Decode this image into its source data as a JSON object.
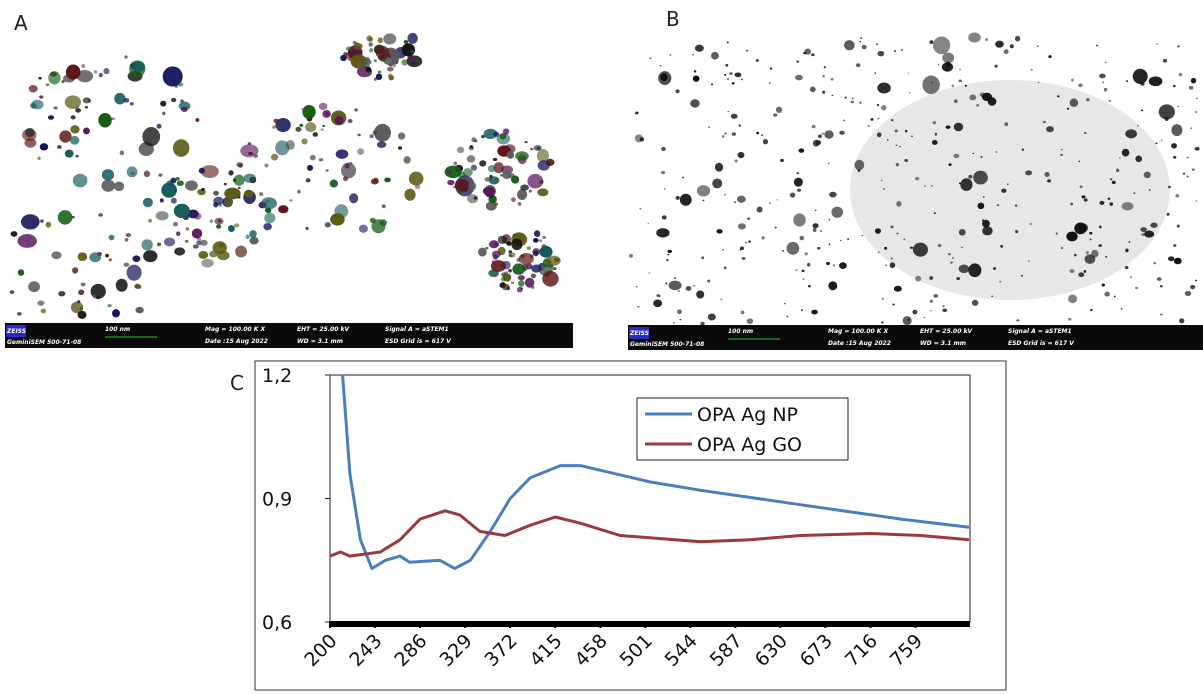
{
  "panel_labels": [
    "A",
    "B",
    "C"
  ],
  "sem_bar": {
    "brand": "ZEISS",
    "scale": "100 nm",
    "mag": "Mag = 100.00 K X",
    "date": "Date :15 Aug 2022",
    "eht": "EHT = 25.00 kV",
    "wd": "WD = 3.1 mm",
    "signal": "Signal A = aSTEM1",
    "esd": "ESD Grid is = 617 V",
    "instrument": "GeminiSEM 500-71-08"
  },
  "chart_data": {
    "type": "line",
    "xlim": [
      200,
      811
    ],
    "ylim": [
      0.6,
      1.2
    ],
    "xticks": [
      200,
      243,
      286,
      329,
      372,
      415,
      458,
      501,
      544,
      587,
      630,
      673,
      716,
      759
    ],
    "yticks": [
      {
        "value": 0.6,
        "label": "0,6"
      },
      {
        "value": 0.9,
        "label": "0,9"
      },
      {
        "value": 1.2,
        "label": "1,2"
      }
    ],
    "grid": false,
    "legend": "upper right",
    "series": [
      {
        "name": "OPA Ag NP",
        "color": "#4a7ebf",
        "x": [
          212,
          219,
          229,
          240,
          253,
          267,
          276,
          305,
          319,
          334,
          353,
          372,
          391,
          420,
          439,
          506,
          554,
          649,
          745,
          810
        ],
        "values": [
          1.2,
          0.96,
          0.8,
          0.73,
          0.75,
          0.76,
          0.745,
          0.75,
          0.73,
          0.75,
          0.82,
          0.9,
          0.95,
          0.98,
          0.98,
          0.94,
          0.92,
          0.885,
          0.85,
          0.83
        ]
      },
      {
        "name": "OPA Ag GO",
        "color": "#9b3a3a",
        "x": [
          200,
          210,
          219,
          248,
          267,
          286,
          310,
          324,
          343,
          367,
          391,
          415,
          439,
          477,
          554,
          601,
          649,
          716,
          764,
          810
        ],
        "values": [
          0.76,
          0.77,
          0.76,
          0.77,
          0.8,
          0.85,
          0.87,
          0.86,
          0.82,
          0.81,
          0.835,
          0.855,
          0.84,
          0.81,
          0.795,
          0.8,
          0.81,
          0.815,
          0.81,
          0.8
        ]
      }
    ]
  }
}
